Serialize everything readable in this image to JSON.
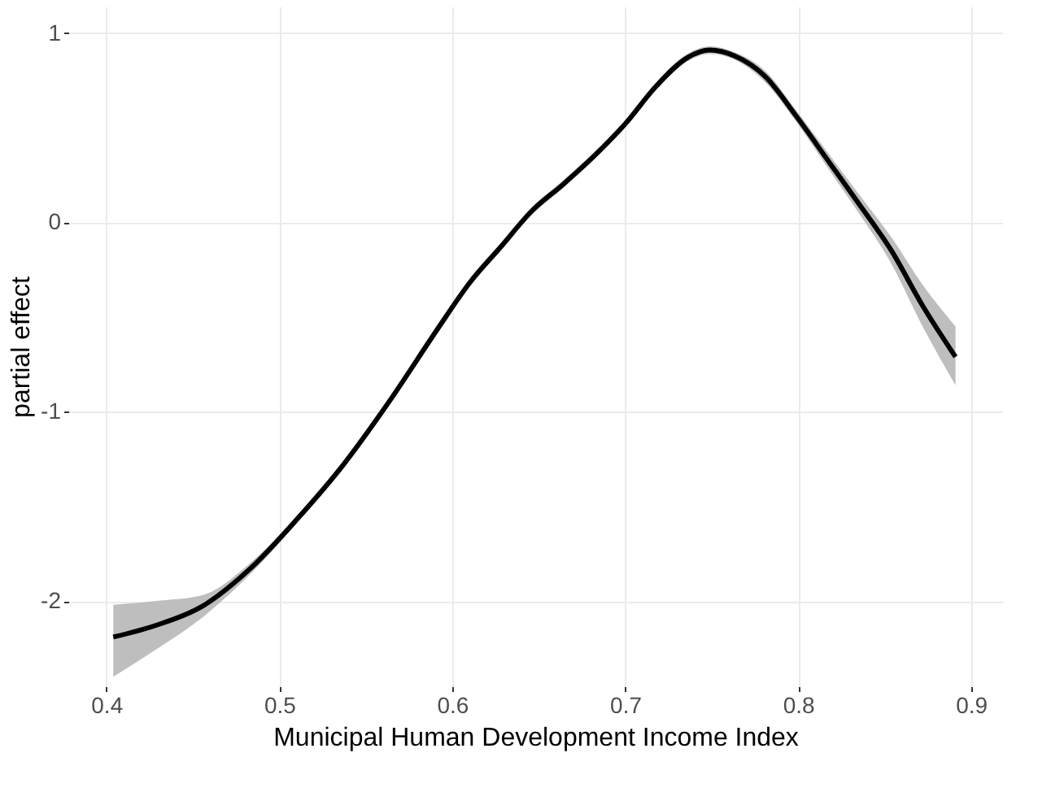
{
  "chart_data": {
    "type": "line",
    "xlabel": "Municipal Human Development Income Index",
    "ylabel": "partial effect",
    "xlim": [
      0.378,
      0.918
    ],
    "xticks": [
      0.4,
      0.5,
      0.6,
      0.7,
      0.8,
      0.9
    ],
    "ylim": [
      -2.45,
      1.14
    ],
    "yticks": [
      -2,
      -1,
      0,
      1
    ],
    "grid": true,
    "marker": "none",
    "line_style": "solid",
    "series": [
      {
        "color": "#000000",
        "x": [
          0.404,
          0.428,
          0.455,
          0.483,
          0.51,
          0.537,
          0.564,
          0.591,
          0.61,
          0.628,
          0.646,
          0.664,
          0.682,
          0.7,
          0.718,
          0.736,
          0.749,
          0.763,
          0.781,
          0.799,
          0.817,
          0.835,
          0.854,
          0.872,
          0.891
        ],
        "values": [
          -2.19,
          -2.13,
          -2.03,
          -1.83,
          -1.57,
          -1.28,
          -0.94,
          -0.57,
          -0.32,
          -0.13,
          0.06,
          0.2,
          0.35,
          0.52,
          0.72,
          0.87,
          0.91,
          0.88,
          0.77,
          0.56,
          0.33,
          0.1,
          -0.15,
          -0.44,
          -0.71
        ],
        "lower": [
          -2.4,
          -2.26,
          -2.09,
          -1.86,
          -1.59,
          -1.3,
          -0.96,
          -0.59,
          -0.34,
          -0.15,
          0.04,
          0.18,
          0.33,
          0.5,
          0.7,
          0.85,
          0.89,
          0.86,
          0.74,
          0.53,
          0.29,
          0.05,
          -0.22,
          -0.55,
          -0.86
        ],
        "upper": [
          -2.02,
          -2.0,
          -1.97,
          -1.8,
          -1.55,
          -1.26,
          -0.92,
          -0.55,
          -0.3,
          -0.11,
          0.08,
          0.22,
          0.37,
          0.54,
          0.74,
          0.89,
          0.93,
          0.9,
          0.8,
          0.59,
          0.37,
          0.15,
          -0.08,
          -0.33,
          -0.55
        ]
      }
    ]
  }
}
